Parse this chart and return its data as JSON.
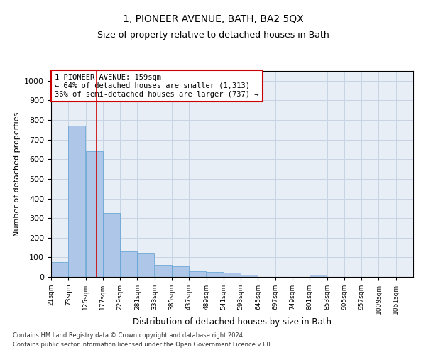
{
  "title": "1, PIONEER AVENUE, BATH, BA2 5QX",
  "subtitle": "Size of property relative to detached houses in Bath",
  "xlabel": "Distribution of detached houses by size in Bath",
  "ylabel": "Number of detached properties",
  "footnote1": "Contains HM Land Registry data © Crown copyright and database right 2024.",
  "footnote2": "Contains public sector information licensed under the Open Government Licence v3.0.",
  "property_size": 159,
  "annotation_line1": "1 PIONEER AVENUE: 159sqm",
  "annotation_line2": "← 64% of detached houses are smaller (1,313)",
  "annotation_line3": "36% of semi-detached houses are larger (737) →",
  "bin_labels": [
    "21sqm",
    "73sqm",
    "125sqm",
    "177sqm",
    "229sqm",
    "281sqm",
    "333sqm",
    "385sqm",
    "437sqm",
    "489sqm",
    "541sqm",
    "593sqm",
    "645sqm",
    "697sqm",
    "749sqm",
    "801sqm",
    "853sqm",
    "905sqm",
    "957sqm",
    "1009sqm",
    "1061sqm"
  ],
  "bin_edges": [
    21,
    73,
    125,
    177,
    229,
    281,
    333,
    385,
    437,
    489,
    541,
    593,
    645,
    697,
    749,
    801,
    853,
    905,
    957,
    1009,
    1061,
    1113
  ],
  "bar_heights": [
    75,
    770,
    640,
    325,
    130,
    120,
    60,
    55,
    30,
    25,
    20,
    12,
    0,
    0,
    0,
    12,
    0,
    0,
    0,
    0,
    0
  ],
  "bar_color": "#aec6e8",
  "bar_edge_color": "#5a9fd4",
  "vline_x": 159,
  "vline_color": "#cc0000",
  "ylim": [
    0,
    1050
  ],
  "yticks": [
    0,
    100,
    200,
    300,
    400,
    500,
    600,
    700,
    800,
    900,
    1000
  ],
  "grid_color": "#c8d4e3",
  "bg_color": "#e8eef5",
  "annotation_box_color": "#cc0000",
  "title_fontsize": 10,
  "subtitle_fontsize": 9
}
